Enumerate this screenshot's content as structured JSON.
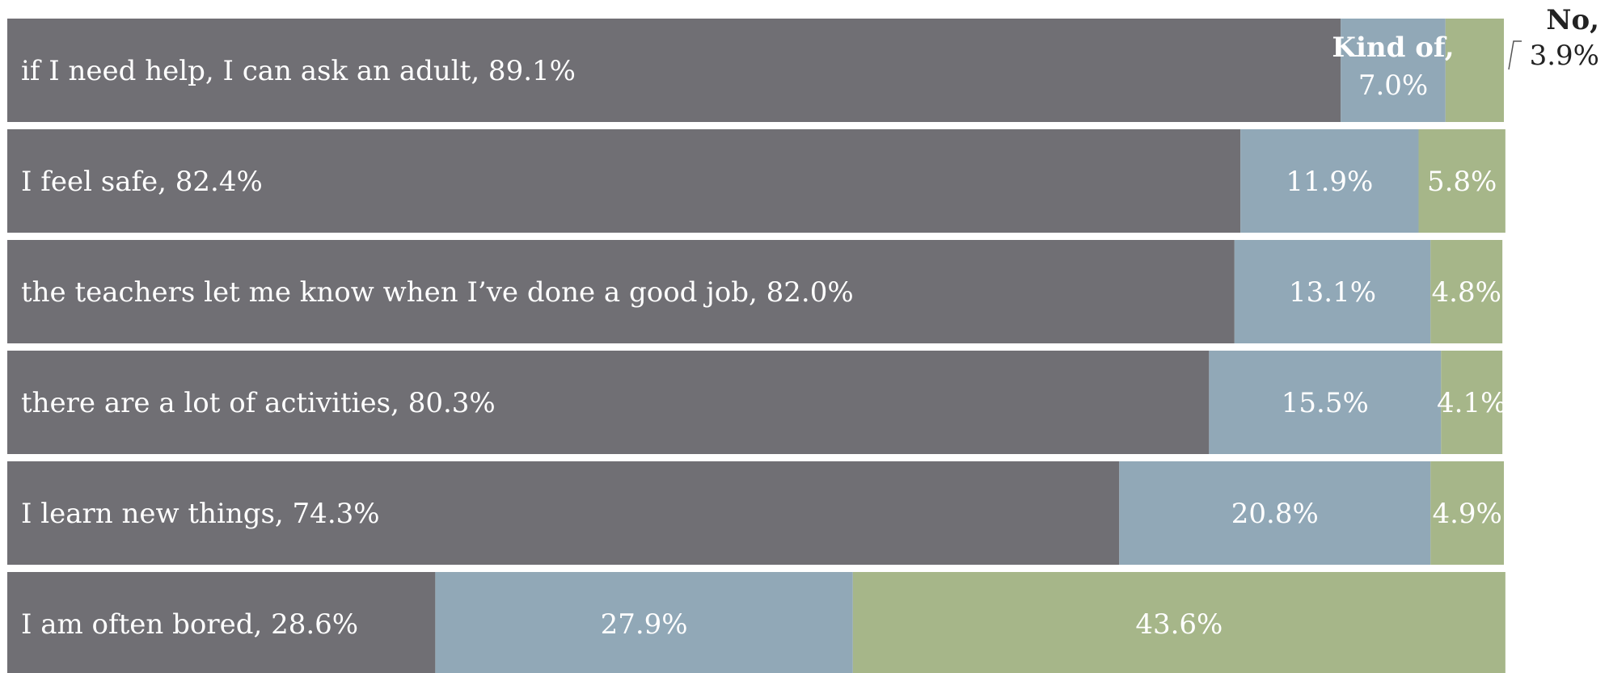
{
  "chart_data": {
    "type": "bar",
    "orientation": "horizontal",
    "stacked": true,
    "normalized": true,
    "xlim": [
      0,
      100
    ],
    "categories": [
      "if I need help, I can ask an adult",
      "I feel safe",
      "the teachers let me know when I’ve done a good job",
      "there are a lot of activities",
      "I learn new things",
      "I am often bored"
    ],
    "series": [
      {
        "name": "",
        "values": [
          89.1,
          82.4,
          82.0,
          80.3,
          74.3,
          28.6
        ]
      },
      {
        "name": "Kind of,",
        "values": [
          7.0,
          11.9,
          13.1,
          15.5,
          20.8,
          27.9
        ]
      },
      {
        "name": "No,",
        "values": [
          3.9,
          5.8,
          4.8,
          4.1,
          4.9,
          43.6
        ]
      }
    ],
    "value_labels": [
      [
        "89.1%",
        "7.0%",
        "3.9%"
      ],
      [
        "82.4%",
        "11.9%",
        "5.8%"
      ],
      [
        "82.0%",
        "13.1%",
        "4.8%"
      ],
      [
        "80.3%",
        "15.5%",
        "4.1%"
      ],
      [
        "74.3%",
        "20.8%",
        "4.9%"
      ],
      [
        "28.6%",
        "27.9%",
        "43.6%"
      ]
    ],
    "colors": [
      "#706f74",
      "#91a8b7",
      "#a6b689"
    ],
    "grid": false,
    "legend": "inline"
  }
}
